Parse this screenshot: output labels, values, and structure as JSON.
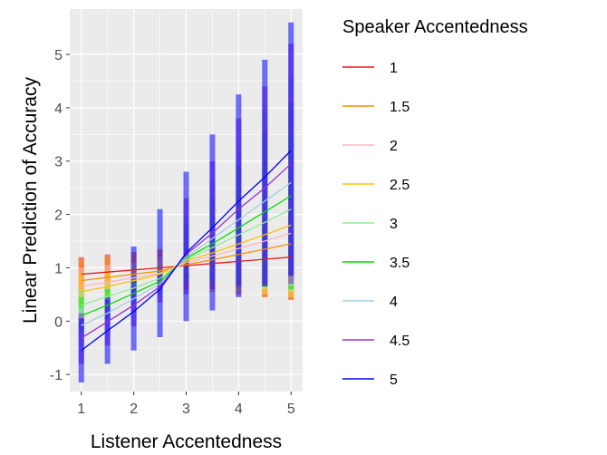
{
  "chart_data": {
    "type": "line",
    "xlabel": "Listener Accentedness",
    "ylabel": "Linear Prediction of Accuracy",
    "xlim": [
      0.78,
      5.22
    ],
    "ylim": [
      -1.32,
      5.85
    ],
    "xticks": [
      1,
      2,
      3,
      4,
      5
    ],
    "xtick_labels": [
      "1",
      "2",
      "3",
      "4",
      "5"
    ],
    "yticks": [
      -1,
      0,
      1,
      2,
      3,
      4,
      5
    ],
    "ytick_labels": [
      "-1",
      "0",
      "1",
      "2",
      "3",
      "4",
      "5"
    ],
    "grid": true,
    "legend": {
      "title": "Speaker Accentedness",
      "position": "right",
      "entries": [
        {
          "label": "1",
          "color": "#e31a1c"
        },
        {
          "label": "1.5",
          "color": "#ff8c00"
        },
        {
          "label": "2",
          "color": "#ffb6c1"
        },
        {
          "label": "2.5",
          "color": "#ffc000"
        },
        {
          "label": "3",
          "color": "#90ee90"
        },
        {
          "label": "3.5",
          "color": "#00e000"
        },
        {
          "label": "4",
          "color": "#a6cee3"
        },
        {
          "label": "4.5",
          "color": "#9932cc"
        },
        {
          "label": "5",
          "color": "#0000ff"
        }
      ]
    },
    "x": [
      1,
      1.5,
      2,
      2.5,
      3,
      3.5,
      4,
      4.5,
      5
    ],
    "series": [
      {
        "name": "1",
        "color": "#e31a1c",
        "y": [
          0.88,
          0.92,
          0.96,
          1.0,
          1.04,
          1.08,
          1.12,
          1.16,
          1.2
        ],
        "lower": [
          0.45,
          0.55,
          0.65,
          0.75,
          0.6,
          0.55,
          0.5,
          0.45,
          0.4
        ],
        "upper": [
          1.2,
          1.25,
          1.3,
          1.35,
          1.45,
          1.55,
          1.7,
          1.9,
          2.0
        ]
      },
      {
        "name": "1.5",
        "color": "#ff8c00",
        "y": [
          0.76,
          0.82,
          0.88,
          0.94,
          1.06,
          1.15,
          1.25,
          1.35,
          1.45
        ],
        "lower": [
          0.55,
          0.6,
          0.65,
          0.7,
          0.6,
          0.55,
          0.5,
          0.45,
          0.4
        ],
        "upper": [
          1.15,
          1.2,
          1.25,
          1.3,
          1.4,
          1.5,
          1.65,
          1.8,
          1.95
        ]
      },
      {
        "name": "2",
        "color": "#ffb6c1",
        "y": [
          0.65,
          0.73,
          0.81,
          0.9,
          1.1,
          1.22,
          1.36,
          1.5,
          1.65
        ],
        "lower": [
          0.4,
          0.5,
          0.6,
          0.7,
          0.6,
          0.55,
          0.5,
          0.5,
          0.45
        ],
        "upper": [
          1.0,
          1.05,
          1.1,
          1.2,
          1.4,
          1.6,
          1.8,
          2.0,
          2.2
        ]
      },
      {
        "name": "2.5",
        "color": "#ffc000",
        "y": [
          0.55,
          0.65,
          0.76,
          0.88,
          1.13,
          1.28,
          1.45,
          1.62,
          1.8
        ],
        "lower": [
          0.3,
          0.45,
          0.55,
          0.65,
          0.7,
          0.6,
          0.55,
          0.5,
          0.45
        ],
        "upper": [
          0.9,
          0.95,
          1.0,
          1.1,
          1.5,
          1.75,
          2.0,
          2.3,
          2.6
        ]
      },
      {
        "name": "3",
        "color": "#90ee90",
        "y": [
          0.3,
          0.46,
          0.62,
          0.8,
          1.15,
          1.38,
          1.62,
          1.85,
          2.1
        ],
        "lower": [
          0.0,
          0.2,
          0.4,
          0.6,
          0.75,
          0.7,
          0.65,
          0.6,
          0.55
        ],
        "upper": [
          0.6,
          0.7,
          0.85,
          1.0,
          1.6,
          2.0,
          2.5,
          3.0,
          3.5
        ]
      },
      {
        "name": "3.5",
        "color": "#00e000",
        "y": [
          0.1,
          0.3,
          0.52,
          0.75,
          1.18,
          1.45,
          1.75,
          2.05,
          2.35
        ],
        "lower": [
          -0.2,
          0.05,
          0.3,
          0.55,
          0.8,
          0.75,
          0.7,
          0.65,
          0.6
        ],
        "upper": [
          0.45,
          0.6,
          0.75,
          0.95,
          1.8,
          2.3,
          2.9,
          3.5,
          4.1
        ]
      },
      {
        "name": "4",
        "color": "#a6cee3",
        "y": [
          -0.08,
          0.15,
          0.42,
          0.7,
          1.2,
          1.55,
          1.9,
          2.25,
          2.6
        ],
        "lower": [
          -0.45,
          -0.15,
          0.15,
          0.5,
          0.85,
          0.8,
          0.75,
          0.7,
          0.65
        ],
        "upper": [
          0.25,
          0.45,
          0.7,
          0.9,
          1.95,
          2.6,
          3.2,
          3.9,
          4.6
        ]
      },
      {
        "name": "4.5",
        "color": "#9932cc",
        "y": [
          -0.32,
          -0.01,
          0.3,
          0.65,
          1.25,
          1.65,
          2.1,
          2.5,
          2.95
        ],
        "lower": [
          -0.8,
          -0.45,
          -0.1,
          0.35,
          0.5,
          0.6,
          0.65,
          0.7,
          0.7
        ],
        "upper": [
          0.15,
          0.4,
          0.65,
          0.9,
          2.3,
          3.0,
          3.8,
          4.4,
          5.2
        ]
      },
      {
        "name": "5",
        "color": "#0000ff",
        "y": [
          -0.55,
          -0.18,
          0.18,
          0.6,
          1.28,
          1.75,
          2.25,
          2.7,
          3.2
        ],
        "lower": [
          -1.15,
          -0.8,
          -0.55,
          -0.3,
          0.0,
          0.2,
          0.45,
          0.65,
          0.85
        ],
        "upper": [
          0.05,
          0.45,
          1.4,
          2.1,
          2.8,
          3.5,
          4.25,
          4.9,
          5.6
        ]
      }
    ]
  }
}
